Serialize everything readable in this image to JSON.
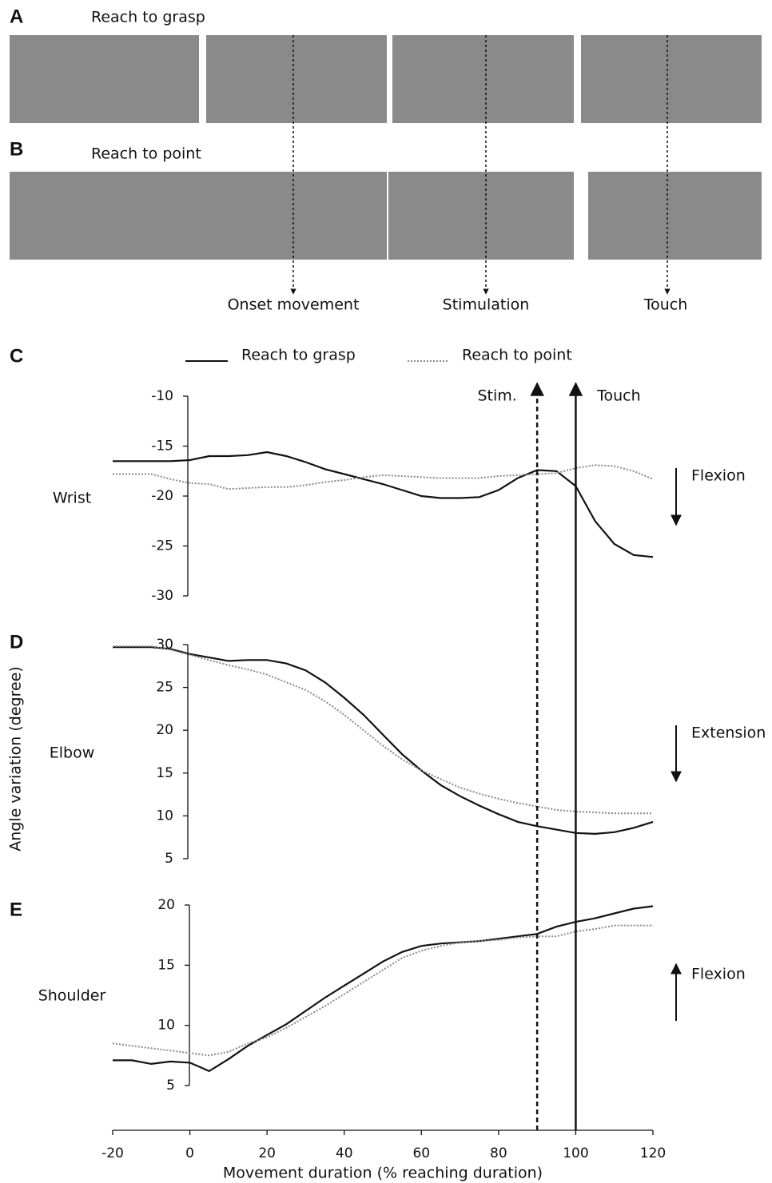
{
  "panels": [
    {
      "letter": "A",
      "label": "Reach to grasp"
    },
    {
      "letter": "B",
      "label": "Reach to point"
    }
  ],
  "events": [
    "Onset movement",
    "Stimulation",
    "Touch"
  ],
  "chart_data": [
    {
      "type": "line",
      "letter": "C",
      "title": "Wrist",
      "x": [
        -20,
        -15,
        -10,
        -5,
        0,
        5,
        10,
        15,
        20,
        25,
        30,
        35,
        40,
        45,
        50,
        55,
        60,
        65,
        70,
        75,
        80,
        85,
        90,
        95,
        100,
        105,
        110,
        115,
        120
      ],
      "ylim": [
        -30,
        -10
      ],
      "yticks": [
        -10,
        -15,
        -20,
        -25,
        -30
      ],
      "series": [
        {
          "name": "Reach to grasp",
          "color": "#111111",
          "style": "solid",
          "values": [
            -16.5,
            -16.5,
            -16.5,
            -16.5,
            -16.4,
            -16,
            -16,
            -15.9,
            -15.6,
            -16,
            -16.6,
            -17.3,
            -17.8,
            -18.3,
            -18.8,
            -19.4,
            -20,
            -20.2,
            -20.2,
            -20.1,
            -19.4,
            -18.2,
            -17.4,
            -17.5,
            -19,
            -22.5,
            -24.8,
            -25.9,
            -26.1
          ]
        },
        {
          "name": "Reach to point",
          "color": "#888888",
          "style": "dotted",
          "values": [
            -17.8,
            -17.8,
            -17.8,
            -18.3,
            -18.7,
            -18.8,
            -19.3,
            -19.2,
            -19.1,
            -19.1,
            -18.9,
            -18.6,
            -18.4,
            -18.1,
            -17.9,
            -18,
            -18.1,
            -18.2,
            -18.2,
            -18.2,
            -18,
            -17.9,
            -17.8,
            -17.7,
            -17.2,
            -16.9,
            -17,
            -17.5,
            -18.3
          ]
        }
      ],
      "annotation": {
        "text": "Flexion",
        "direction": "down"
      }
    },
    {
      "type": "line",
      "letter": "D",
      "title": "Elbow",
      "ylabel": "Angle variation (degree)",
      "x": [
        -20,
        -15,
        -10,
        -5,
        0,
        5,
        10,
        15,
        20,
        25,
        30,
        35,
        40,
        45,
        50,
        55,
        60,
        65,
        70,
        75,
        80,
        85,
        90,
        95,
        100,
        105,
        110,
        115,
        120
      ],
      "ylim": [
        5,
        30
      ],
      "yticks": [
        30,
        25,
        20,
        15,
        10,
        5
      ],
      "series": [
        {
          "color": "#111111",
          "style": "solid",
          "values": [
            29.7,
            29.7,
            29.7,
            29.5,
            28.9,
            28.5,
            28.1,
            28.2,
            28.2,
            27.8,
            27,
            25.6,
            23.8,
            21.8,
            19.5,
            17.2,
            15.3,
            13.6,
            12.3,
            11.2,
            10.2,
            9.3,
            8.8,
            8.4,
            8,
            7.9,
            8.1,
            8.6,
            9.3
          ]
        },
        {
          "color": "#888888",
          "style": "dotted",
          "values": [
            29.8,
            29.8,
            29.8,
            29.4,
            28.8,
            28.2,
            27.6,
            27.1,
            26.5,
            25.6,
            24.7,
            23.4,
            21.8,
            20,
            18.2,
            16.6,
            15.3,
            14.3,
            13.3,
            12.6,
            12,
            11.5,
            11.1,
            10.7,
            10.5,
            10.4,
            10.3,
            10.3,
            10.3
          ]
        }
      ],
      "annotation": {
        "text": "Extension",
        "direction": "down"
      }
    },
    {
      "type": "line",
      "letter": "E",
      "title": "Shoulder",
      "x": [
        -20,
        -15,
        -10,
        -5,
        0,
        5,
        10,
        15,
        20,
        25,
        30,
        35,
        40,
        45,
        50,
        55,
        60,
        65,
        70,
        75,
        80,
        85,
        90,
        95,
        100,
        105,
        110,
        115,
        120
      ],
      "xlim": [
        -20,
        120
      ],
      "xticks": [
        -20,
        0,
        20,
        40,
        60,
        80,
        100,
        120
      ],
      "xlabel": "Movement duration (% reaching duration)",
      "ylim": [
        5,
        20
      ],
      "yticks": [
        20,
        15,
        10,
        5
      ],
      "series": [
        {
          "color": "#111111",
          "style": "solid",
          "values": [
            7.1,
            7.1,
            6.8,
            7,
            6.9,
            6.2,
            7.2,
            8.3,
            9.2,
            10.1,
            11.2,
            12.3,
            13.3,
            14.3,
            15.3,
            16.1,
            16.6,
            16.8,
            16.9,
            17,
            17.2,
            17.4,
            17.6,
            18.2,
            18.6,
            18.9,
            19.3,
            19.7,
            19.9
          ]
        },
        {
          "color": "#888888",
          "style": "dotted",
          "values": [
            8.5,
            8.3,
            8.1,
            7.9,
            7.7,
            7.5,
            7.8,
            8.5,
            9,
            9.8,
            10.7,
            11.6,
            12.6,
            13.6,
            14.6,
            15.6,
            16.2,
            16.6,
            16.9,
            17,
            17.1,
            17.3,
            17.4,
            17.4,
            17.8,
            18,
            18.3,
            18.3,
            18.3
          ]
        }
      ],
      "annotation": {
        "text": "Flexion",
        "direction": "up"
      },
      "vlines": [
        {
          "x": 90,
          "label": "Stim.",
          "style": "dashed"
        },
        {
          "x": 100,
          "label": "Touch",
          "style": "solid"
        }
      ]
    }
  ]
}
